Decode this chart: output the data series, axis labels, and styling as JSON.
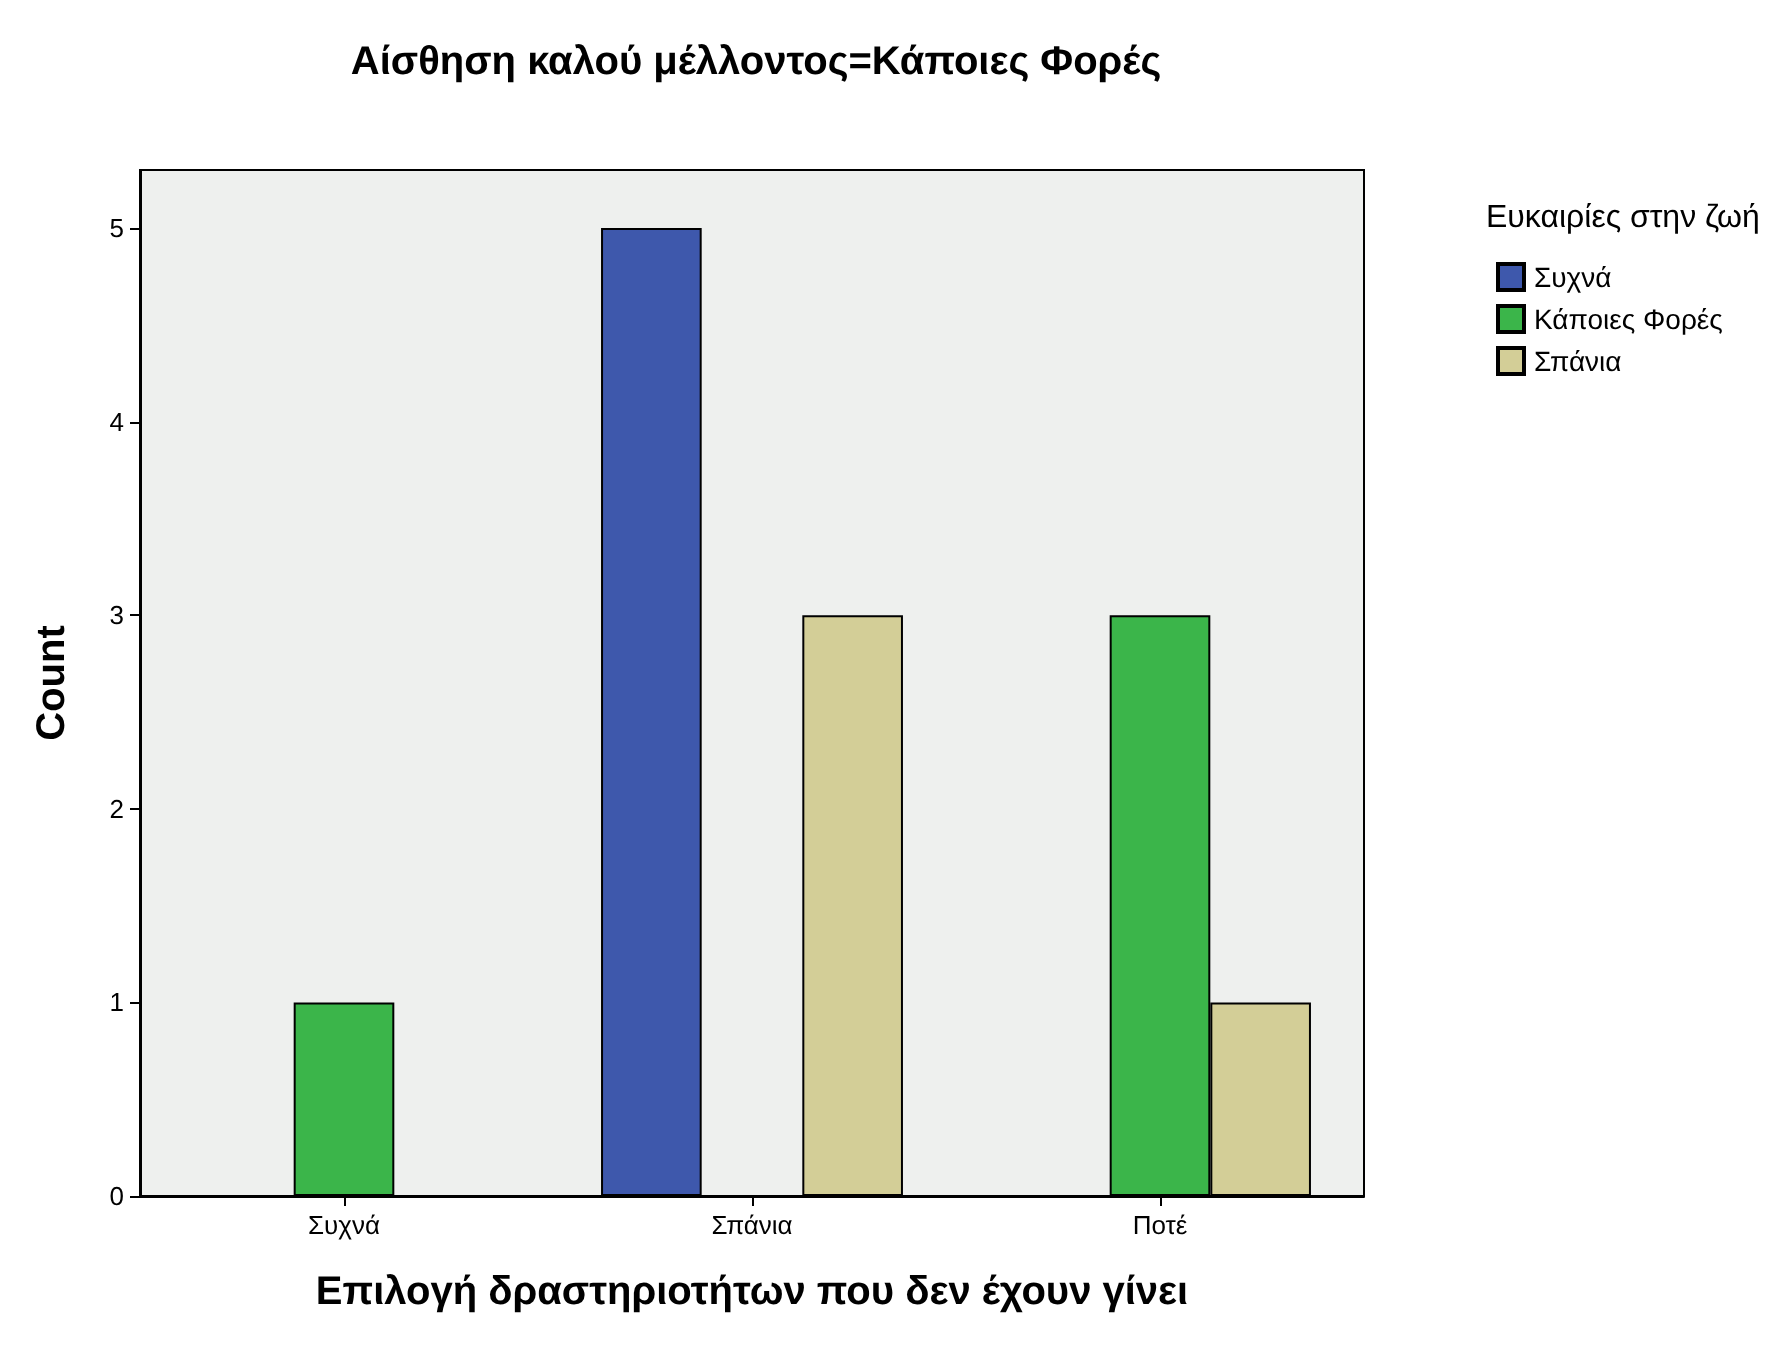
{
  "chart_data": {
    "type": "bar",
    "title": "Αίσθηση καλού μέλλοντος=Κάποιες Φορές",
    "xlabel": "Επιλογή δραστηριοτήτων που δεν έχουν γίνει",
    "ylabel": "Count",
    "legend_title": "Ευκαιρίες στην ζωή",
    "categories": [
      "Συχνά",
      "Σπάνια",
      "Ποτέ"
    ],
    "series": [
      {
        "name": "Συχνά",
        "color": "#3e58ac",
        "values": [
          null,
          5,
          null
        ]
      },
      {
        "name": "Κάποιες Φορές",
        "color": "#3bb54a",
        "values": [
          1,
          null,
          3
        ]
      },
      {
        "name": "Σπάνια",
        "color": "#d3ce97",
        "values": [
          null,
          3,
          1
        ]
      }
    ],
    "ylim": [
      0,
      5.3
    ],
    "yticks": [
      0,
      1,
      2,
      3,
      4,
      5
    ],
    "grid": false,
    "legend": "right"
  }
}
